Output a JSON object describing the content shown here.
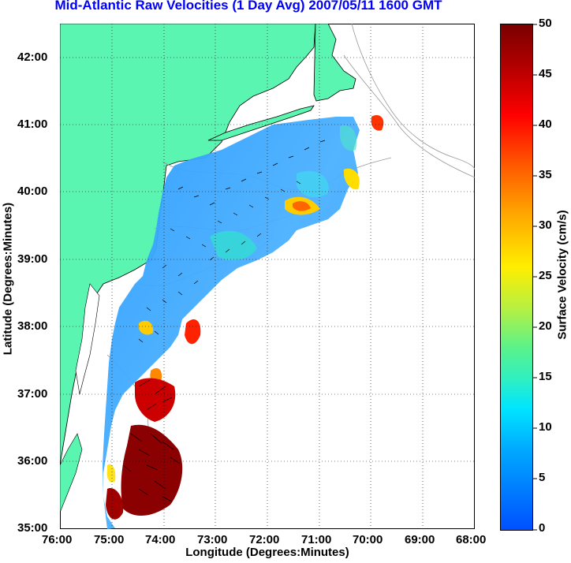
{
  "title": "Mid-Atlantic Raw Velocities (1 Day Avg) 2007/05/11 1600 GMT",
  "x_axis": {
    "label": "Longitude (Degrees:Minutes)",
    "ticks": [
      "76:00",
      "75:00",
      "74:00",
      "73:00",
      "72:00",
      "71:00",
      "70:00",
      "69:00",
      "68:00"
    ]
  },
  "y_axis": {
    "label": "Latitude (Degrees:Minutes)",
    "ticks": [
      "42:00",
      "41:00",
      "40:00",
      "39:00",
      "38:00",
      "37:00",
      "36:00",
      "35:00"
    ]
  },
  "colorbar": {
    "label": "Surface Velocity (cm/s)",
    "ticks": [
      "50",
      "45",
      "40",
      "35",
      "30",
      "25",
      "20",
      "15",
      "10",
      "5",
      "0"
    ],
    "range": [
      0,
      50
    ]
  },
  "colors": {
    "land": "#5af5b0",
    "title": "#0000ff",
    "grid": "#000000",
    "coastline_depth": "#999999"
  }
}
